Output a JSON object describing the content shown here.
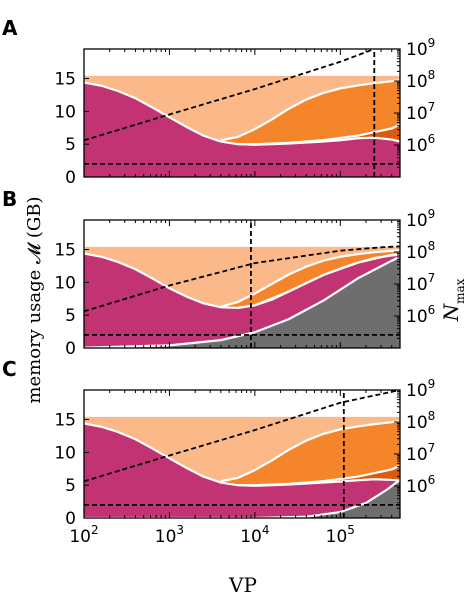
{
  "figure": {
    "y_label": "memory usage 𝓜 (GB)",
    "y2_label": {
      "main": "N",
      "sub": "max"
    },
    "x_label": "VP"
  },
  "colors": {
    "light_orange": "#FBB98A",
    "orange": "#F5852B",
    "dark_orange": "#D85B12",
    "magenta": "#C23374",
    "gray": "#6E6E6E",
    "boundary": "#FFFFFF",
    "dashed": "#000000"
  },
  "chart_data": [
    {
      "type": "area",
      "panel": "A",
      "x_scale": "log",
      "xlim": [
        100,
        500000
      ],
      "ylim": [
        0,
        19.5
      ],
      "y_ticks": [
        "0",
        "5",
        "10",
        "15"
      ],
      "y2_scale": "log",
      "y2lim": [
        100000,
        1000000000
      ],
      "y2_ticks": [
        {
          "base": "10",
          "exp": "6",
          "value": 1000000
        },
        {
          "base": "10",
          "exp": "7",
          "value": 10000000
        },
        {
          "base": "10",
          "exp": "8",
          "value": 100000000
        },
        {
          "base": "10",
          "exp": "9",
          "value": 1000000000
        }
      ],
      "x_ticks": [
        {
          "base": "10",
          "exp": "2",
          "value": 100
        },
        {
          "base": "10",
          "exp": "3",
          "value": 1000
        },
        {
          "base": "10",
          "exp": "4",
          "value": 10000
        },
        {
          "base": "10",
          "exp": "5",
          "value": 100000
        }
      ],
      "memory_limit": 15.4,
      "layers": [
        {
          "color": "magenta",
          "x": [
            100,
            160,
            250,
            400,
            630,
            1000,
            1600,
            2500,
            4000,
            6300,
            10000,
            16000,
            25000,
            40000,
            63000,
            100000,
            160000,
            250000,
            400000,
            500000
          ],
          "y": [
            14.4,
            13.9,
            13.1,
            12.0,
            10.6,
            9.1,
            7.6,
            6.3,
            5.4,
            5.0,
            4.9,
            5.0,
            5.1,
            5.25,
            5.4,
            5.6,
            5.9,
            6.0,
            5.7,
            5.4
          ]
        },
        {
          "color": "dark_orange",
          "x": [
            6300,
            10000,
            25000,
            63000,
            160000,
            400000,
            500000
          ],
          "y": [
            5.0,
            5.0,
            5.2,
            5.6,
            6.3,
            7.4,
            8.0
          ]
        },
        {
          "color": "orange",
          "x": [
            4000,
            6300,
            10000,
            16000,
            25000,
            40000,
            63000,
            100000,
            160000,
            250000,
            400000,
            500000
          ],
          "y": [
            5.6,
            6.1,
            7.3,
            8.8,
            10.4,
            11.8,
            12.8,
            13.5,
            13.95,
            14.3,
            14.6,
            14.75
          ]
        },
        {
          "color": "light_orange",
          "x": [
            100,
            500000
          ],
          "y": [
            15.4,
            15.4
          ]
        }
      ],
      "dashed_curves": [
        {
          "axis": "y2",
          "x": [
            100,
            1000,
            10000,
            100000,
            250000
          ],
          "y": [
            1400000,
            9000000,
            56000000,
            400000000,
            1000000000
          ]
        },
        {
          "axis": "y",
          "x": [
            100,
            500000
          ],
          "y": [
            2.0,
            2.0
          ]
        },
        {
          "axis": "y",
          "x": [
            250000,
            250000
          ],
          "y": [
            0,
            19.5
          ]
        }
      ]
    },
    {
      "type": "area",
      "panel": "B",
      "x_scale": "log",
      "xlim": [
        100,
        500000
      ],
      "ylim": [
        0,
        19.5
      ],
      "y_ticks": [
        "0",
        "5",
        "10",
        "15"
      ],
      "y2_scale": "log",
      "y2lim": [
        100000,
        1000000000
      ],
      "y2_ticks": [
        {
          "base": "10",
          "exp": "6",
          "value": 1000000
        },
        {
          "base": "10",
          "exp": "7",
          "value": 10000000
        },
        {
          "base": "10",
          "exp": "8",
          "value": 100000000
        },
        {
          "base": "10",
          "exp": "9",
          "value": 1000000000
        }
      ],
      "x_ticks": [
        {
          "base": "10",
          "exp": "2",
          "value": 100
        },
        {
          "base": "10",
          "exp": "3",
          "value": 1000
        },
        {
          "base": "10",
          "exp": "4",
          "value": 10000
        },
        {
          "base": "10",
          "exp": "5",
          "value": 100000
        }
      ],
      "memory_limit": 15.4,
      "layers": [
        {
          "color": "gray",
          "x": [
            100,
            1000,
            4000,
            10000,
            25000,
            63000,
            160000,
            400000,
            500000
          ],
          "y": [
            0.05,
            0.4,
            1.2,
            2.4,
            4.4,
            7.2,
            10.6,
            13.3,
            13.9
          ]
        },
        {
          "color": "magenta",
          "x": [
            100,
            160,
            250,
            400,
            630,
            1000,
            1600,
            2500,
            4000,
            6300,
            10000,
            16000,
            25000,
            40000,
            63000,
            100000,
            160000,
            250000,
            400000,
            500000
          ],
          "y": [
            14.4,
            13.9,
            13.1,
            12.0,
            10.6,
            9.1,
            7.8,
            6.8,
            6.2,
            6.1,
            6.5,
            7.4,
            8.6,
            9.9,
            11.1,
            12.1,
            13.0,
            13.7,
            14.1,
            14.2
          ]
        },
        {
          "color": "dark_orange",
          "x": [
            6300,
            10000,
            25000,
            63000,
            160000,
            400000,
            500000
          ],
          "y": [
            6.1,
            6.5,
            8.6,
            11.1,
            13.0,
            14.2,
            14.3
          ]
        },
        {
          "color": "orange",
          "x": [
            4000,
            6300,
            10000,
            16000,
            25000,
            40000,
            63000,
            100000,
            160000,
            250000,
            400000,
            500000
          ],
          "y": [
            6.3,
            7.0,
            8.3,
            9.8,
            11.2,
            12.4,
            13.3,
            13.9,
            14.3,
            14.6,
            14.8,
            14.9
          ]
        },
        {
          "color": "light_orange",
          "x": [
            100,
            500000
          ],
          "y": [
            15.4,
            15.4
          ]
        }
      ],
      "dashed_curves": [
        {
          "axis": "y2",
          "x": [
            100,
            1000,
            10000,
            100000,
            300000,
            500000
          ],
          "y": [
            1400000,
            9000000,
            45000000,
            110000000,
            140000000,
            150000000
          ]
        },
        {
          "axis": "y",
          "x": [
            100,
            500000
          ],
          "y": [
            2.0,
            2.0
          ]
        },
        {
          "axis": "y",
          "x": [
            9000,
            9000
          ],
          "y": [
            0,
            19.5
          ]
        }
      ]
    },
    {
      "type": "area",
      "panel": "C",
      "x_scale": "log",
      "xlim": [
        100,
        500000
      ],
      "ylim": [
        0,
        19.5
      ],
      "y_ticks": [
        "0",
        "5",
        "10",
        "15"
      ],
      "y2_scale": "log",
      "y2lim": [
        100000,
        1000000000
      ],
      "y2_ticks": [
        {
          "base": "10",
          "exp": "6",
          "value": 1000000
        },
        {
          "base": "10",
          "exp": "7",
          "value": 10000000
        },
        {
          "base": "10",
          "exp": "8",
          "value": 100000000
        },
        {
          "base": "10",
          "exp": "9",
          "value": 1000000000
        }
      ],
      "x_ticks": [
        {
          "base": "10",
          "exp": "2",
          "value": 100
        },
        {
          "base": "10",
          "exp": "3",
          "value": 1000
        },
        {
          "base": "10",
          "exp": "4",
          "value": 10000
        },
        {
          "base": "10",
          "exp": "5",
          "value": 100000
        }
      ],
      "memory_limit": 15.4,
      "layers": [
        {
          "color": "gray",
          "x": [
            100,
            10000,
            40000,
            100000,
            200000,
            350000,
            500000
          ],
          "y": [
            0,
            0,
            0.2,
            0.9,
            2.3,
            4.3,
            5.8
          ]
        },
        {
          "color": "magenta",
          "x": [
            100,
            160,
            250,
            400,
            630,
            1000,
            1600,
            2500,
            4000,
            6300,
            10000,
            16000,
            25000,
            40000,
            63000,
            100000,
            160000,
            250000,
            400000,
            500000
          ],
          "y": [
            14.4,
            13.9,
            13.1,
            12.0,
            10.6,
            9.1,
            7.6,
            6.3,
            5.4,
            5.0,
            4.9,
            5.0,
            5.1,
            5.25,
            5.4,
            5.55,
            5.75,
            5.9,
            5.8,
            5.7
          ]
        },
        {
          "color": "dark_orange",
          "x": [
            6300,
            10000,
            25000,
            63000,
            160000,
            400000,
            500000
          ],
          "y": [
            5.0,
            5.0,
            5.2,
            5.6,
            6.3,
            7.4,
            8.0
          ]
        },
        {
          "color": "orange",
          "x": [
            4000,
            6300,
            10000,
            16000,
            25000,
            40000,
            63000,
            100000,
            160000,
            250000,
            400000,
            500000
          ],
          "y": [
            5.6,
            6.1,
            7.3,
            8.8,
            10.4,
            11.8,
            12.8,
            13.5,
            13.95,
            14.3,
            14.6,
            14.75
          ]
        },
        {
          "color": "light_orange",
          "x": [
            100,
            500000
          ],
          "y": [
            15.4,
            15.4
          ]
        }
      ],
      "dashed_curves": [
        {
          "axis": "y2",
          "x": [
            100,
            1000,
            10000,
            100000,
            500000
          ],
          "y": [
            1400000,
            9000000,
            56000000,
            400000000,
            1000000000
          ]
        },
        {
          "axis": "y",
          "x": [
            100,
            500000
          ],
          "y": [
            2.0,
            2.0
          ]
        },
        {
          "axis": "y",
          "x": [
            110000,
            110000
          ],
          "y": [
            0,
            19.5
          ]
        }
      ]
    }
  ]
}
